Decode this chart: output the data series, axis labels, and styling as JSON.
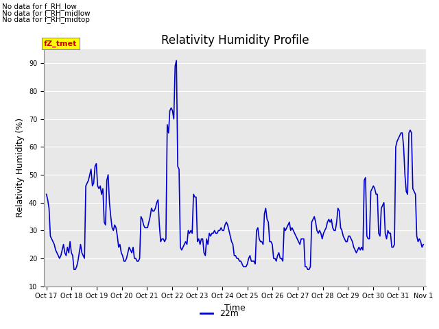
{
  "title": "Relativity Humidity Profile",
  "xlabel": "Time",
  "ylabel": "Relativity Humidity (%)",
  "ylim": [
    10,
    95
  ],
  "yticks": [
    10,
    20,
    30,
    40,
    50,
    60,
    70,
    80,
    90
  ],
  "line_color": "#0000CC",
  "line_width": 1.2,
  "legend_label": "22m",
  "legend_color": "#0000CC",
  "bg_color": "#E8E8E8",
  "annotations_outside": [
    "No data for f_RH_low",
    "No data for f_RH_midlow",
    "No data for f_RH_midtop"
  ],
  "annotation_color_label": "fZ_tmet",
  "annotation_box_color": "#FFFF00",
  "annotation_text_color": "#CC0000",
  "xtick_labels": [
    "Oct 17",
    "Oct 18",
    "Oct 19",
    "Oct 20",
    "Oct 21",
    "Oct 22",
    "Oct 23",
    "Oct 24",
    "Oct 25",
    "Oct 26",
    "Oct 27",
    "Oct 28",
    "Oct 29",
    "Oct 30",
    "Oct 31",
    "Nov 1"
  ],
  "rh_data": [
    43,
    41,
    38,
    28,
    27,
    26,
    25,
    23,
    22,
    21,
    20,
    21,
    23,
    25,
    22,
    21,
    24,
    22,
    26,
    22,
    21,
    16,
    16,
    17,
    19,
    22,
    25,
    22,
    21,
    20,
    46,
    47,
    48,
    50,
    52,
    46,
    47,
    53,
    54,
    46,
    45,
    46,
    43,
    45,
    33,
    32,
    48,
    50,
    40,
    35,
    31,
    30,
    32,
    31,
    28,
    24,
    25,
    22,
    21,
    19,
    19,
    20,
    22,
    24,
    23,
    22,
    24,
    20,
    20,
    19,
    19,
    20,
    35,
    34,
    32,
    31,
    31,
    31,
    33,
    35,
    38,
    37,
    37,
    38,
    40,
    41,
    32,
    26,
    27,
    27,
    26,
    27,
    68,
    65,
    73,
    74,
    73,
    70,
    89,
    91,
    53,
    52,
    24,
    23,
    24,
    25,
    26,
    25,
    30,
    29,
    30,
    29,
    43,
    42,
    42,
    26,
    27,
    25,
    27,
    27,
    22,
    21,
    27,
    25,
    29,
    28,
    29,
    29,
    30,
    29,
    29,
    30,
    30,
    31,
    30,
    30,
    32,
    33,
    32,
    30,
    28,
    26,
    25,
    21,
    21,
    20,
    20,
    19,
    19,
    18,
    17,
    17,
    17,
    18,
    20,
    21,
    19,
    19,
    19,
    18,
    30,
    31,
    27,
    26,
    26,
    25,
    36,
    38,
    34,
    33,
    26,
    26,
    25,
    20,
    20,
    19,
    21,
    22,
    20,
    20,
    19,
    31,
    30,
    31,
    32,
    33,
    30,
    31,
    30,
    29,
    28,
    27,
    26,
    25,
    27,
    27,
    27,
    17,
    17,
    16,
    16,
    17,
    33,
    34,
    35,
    33,
    30,
    29,
    30,
    29,
    27,
    29,
    30,
    31,
    33,
    34,
    33,
    34,
    31,
    30,
    30,
    33,
    38,
    37,
    31,
    30,
    28,
    27,
    26,
    26,
    28,
    28,
    27,
    26,
    24,
    23,
    22,
    23,
    24,
    23,
    24,
    23,
    48,
    49,
    28,
    27,
    27,
    44,
    45,
    46,
    45,
    43,
    43,
    29,
    28,
    38,
    39,
    40,
    29,
    27,
    30,
    29,
    29,
    24,
    24,
    25,
    60,
    62,
    63,
    64,
    65,
    65,
    60,
    50,
    44,
    43,
    65,
    66,
    65,
    45,
    44,
    43,
    28,
    26,
    27,
    26,
    24,
    25
  ]
}
